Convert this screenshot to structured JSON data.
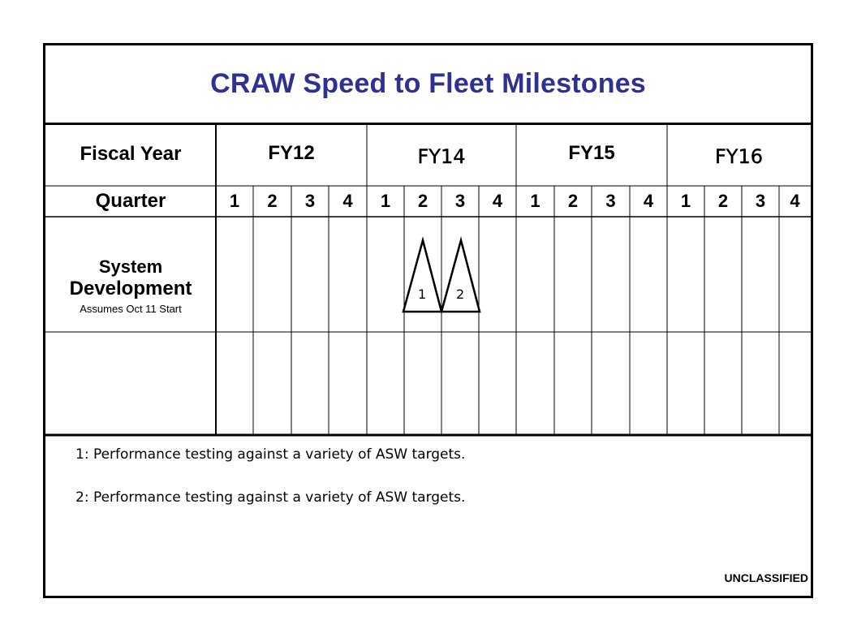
{
  "title": "CRAW Speed to Fleet Milestones",
  "colors": {
    "title": "#2e3192",
    "lines": "#000000"
  },
  "header": {
    "fiscal_year_label": "Fiscal Year",
    "quarter_label": "Quarter",
    "fiscal_years": [
      "FY12",
      "FY14",
      "FY15",
      "FY16"
    ],
    "quarters": [
      "1",
      "2",
      "3",
      "4",
      "1",
      "2",
      "3",
      "4",
      "1",
      "2",
      "3",
      "4",
      "1",
      "2",
      "3",
      "4"
    ]
  },
  "rows": {
    "system_development": {
      "line1": "System",
      "line2": "Development",
      "line3": "Assumes Oct 11 Start"
    }
  },
  "milestones": [
    {
      "label": "1",
      "fiscal_year": "FY14",
      "quarter": "2",
      "icon": "triangle-milestone-icon"
    },
    {
      "label": "2",
      "fiscal_year": "FY14",
      "quarter": "3",
      "icon": "triangle-milestone-icon"
    }
  ],
  "notes": [
    "1: Performance testing against a variety of ASW targets.",
    "2: Performance testing against a variety of ASW targets."
  ],
  "classification": "UNCLASSIFIED"
}
